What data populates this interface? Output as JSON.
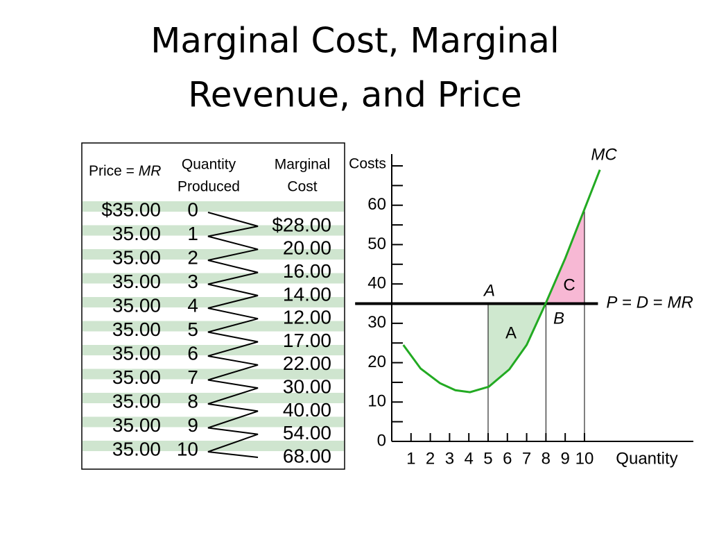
{
  "title": [
    "Marginal Cost, Marginal",
    "Revenue, and Price"
  ],
  "table": {
    "headers": {
      "price": [
        {
          "text": "Price = ",
          "italic": false
        },
        {
          "text": "MR",
          "italic": true
        }
      ],
      "quantity": [
        "Quantity",
        "Produced"
      ],
      "cost": [
        "Marginal",
        "Cost"
      ]
    },
    "prices": [
      "$35.00",
      "35.00",
      "35.00",
      "35.00",
      "35.00",
      "35.00",
      "35.00",
      "35.00",
      "35.00",
      "35.00",
      "35.00"
    ],
    "quantities": [
      "0",
      "1",
      "2",
      "3",
      "4",
      "5",
      "6",
      "7",
      "8",
      "9",
      "10"
    ],
    "costs": [
      "$28.00",
      "20.00",
      "16.00",
      "14.00",
      "12.00",
      "17.00",
      "22.00",
      "30.00",
      "40.00",
      "54.00",
      "68.00"
    ]
  },
  "chart_data": {
    "type": "line",
    "ylabel": "Costs",
    "xlabel": "Quantity",
    "xlim": [
      0,
      15.65
    ],
    "ylim": [
      0,
      73
    ],
    "xticks": [
      1,
      2,
      3,
      4,
      5,
      6,
      7,
      8,
      9,
      10
    ],
    "yticks": [
      0,
      10,
      20,
      30,
      40,
      50,
      60
    ],
    "yminor": [
      5,
      15,
      25,
      35,
      45,
      55,
      65,
      70
    ],
    "series": [
      {
        "name": "MC",
        "color": "#22aa22",
        "x": [
          0.6,
          1.5,
          2.5,
          3.3,
          4.06,
          5.04,
          6.1,
          7.0,
          8.0,
          9.0,
          10.0,
          10.8
        ],
        "values": [
          24.5,
          18.5,
          14.8,
          13.0,
          12.5,
          13.9,
          18.3,
          24.5,
          35.2,
          46.5,
          59,
          69
        ]
      }
    ],
    "price_line": {
      "value": 35,
      "xrange": [
        -1.9,
        10.7
      ],
      "label": [
        {
          "text": "P",
          "italic": true
        },
        {
          "text": " = ",
          "italic": false
        },
        {
          "text": "D",
          "italic": true
        },
        {
          "text": " = ",
          "italic": false
        },
        {
          "text": "MR",
          "italic": true
        }
      ]
    },
    "verticals": [
      5,
      8,
      10
    ],
    "annotations": [
      "A",
      "B",
      "C",
      "A"
    ],
    "shade_colors": [
      "#cfe8cf",
      "#f7b8d4"
    ],
    "stripe_color": "#cfe5cf"
  }
}
